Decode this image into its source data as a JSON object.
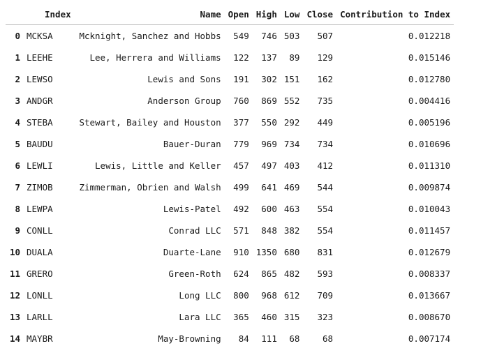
{
  "table": {
    "columns": [
      "Index",
      "Name",
      "Open",
      "High",
      "Low",
      "Close",
      "Contribution to Index"
    ],
    "rows": [
      {
        "row_label": "0",
        "Index": "MCKSA",
        "Name": "Mcknight, Sanchez and Hobbs",
        "Open": "549",
        "High": "746",
        "Low": "503",
        "Close": "507",
        "Contribution to Index": "0.012218"
      },
      {
        "row_label": "1",
        "Index": "LEEHE",
        "Name": "Lee, Herrera and Williams",
        "Open": "122",
        "High": "137",
        "Low": "89",
        "Close": "129",
        "Contribution to Index": "0.015146"
      },
      {
        "row_label": "2",
        "Index": "LEWSO",
        "Name": "Lewis and Sons",
        "Open": "191",
        "High": "302",
        "Low": "151",
        "Close": "162",
        "Contribution to Index": "0.012780"
      },
      {
        "row_label": "3",
        "Index": "ANDGR",
        "Name": "Anderson Group",
        "Open": "760",
        "High": "869",
        "Low": "552",
        "Close": "735",
        "Contribution to Index": "0.004416"
      },
      {
        "row_label": "4",
        "Index": "STEBA",
        "Name": "Stewart, Bailey and Houston",
        "Open": "377",
        "High": "550",
        "Low": "292",
        "Close": "449",
        "Contribution to Index": "0.005196"
      },
      {
        "row_label": "5",
        "Index": "BAUDU",
        "Name": "Bauer-Duran",
        "Open": "779",
        "High": "969",
        "Low": "734",
        "Close": "734",
        "Contribution to Index": "0.010696"
      },
      {
        "row_label": "6",
        "Index": "LEWLI",
        "Name": "Lewis, Little and Keller",
        "Open": "457",
        "High": "497",
        "Low": "403",
        "Close": "412",
        "Contribution to Index": "0.011310"
      },
      {
        "row_label": "7",
        "Index": "ZIMOB",
        "Name": "Zimmerman, Obrien and Walsh",
        "Open": "499",
        "High": "641",
        "Low": "469",
        "Close": "544",
        "Contribution to Index": "0.009874"
      },
      {
        "row_label": "8",
        "Index": "LEWPA",
        "Name": "Lewis-Patel",
        "Open": "492",
        "High": "600",
        "Low": "463",
        "Close": "554",
        "Contribution to Index": "0.010043"
      },
      {
        "row_label": "9",
        "Index": "CONLL",
        "Name": "Conrad LLC",
        "Open": "571",
        "High": "848",
        "Low": "382",
        "Close": "554",
        "Contribution to Index": "0.011457"
      },
      {
        "row_label": "10",
        "Index": "DUALA",
        "Name": "Duarte-Lane",
        "Open": "910",
        "High": "1350",
        "Low": "680",
        "Close": "831",
        "Contribution to Index": "0.012679"
      },
      {
        "row_label": "11",
        "Index": "GRERO",
        "Name": "Green-Roth",
        "Open": "624",
        "High": "865",
        "Low": "482",
        "Close": "593",
        "Contribution to Index": "0.008337"
      },
      {
        "row_label": "12",
        "Index": "LONLL",
        "Name": "Long LLC",
        "Open": "800",
        "High": "968",
        "Low": "612",
        "Close": "709",
        "Contribution to Index": "0.013667"
      },
      {
        "row_label": "13",
        "Index": "LARLL",
        "Name": "Lara LLC",
        "Open": "365",
        "High": "460",
        "Low": "315",
        "Close": "323",
        "Contribution to Index": "0.008670"
      },
      {
        "row_label": "14",
        "Index": "MAYBR",
        "Name": "May-Browning",
        "Open": "84",
        "High": "111",
        "Low": "68",
        "Close": "68",
        "Contribution to Index": "0.007174"
      }
    ]
  }
}
